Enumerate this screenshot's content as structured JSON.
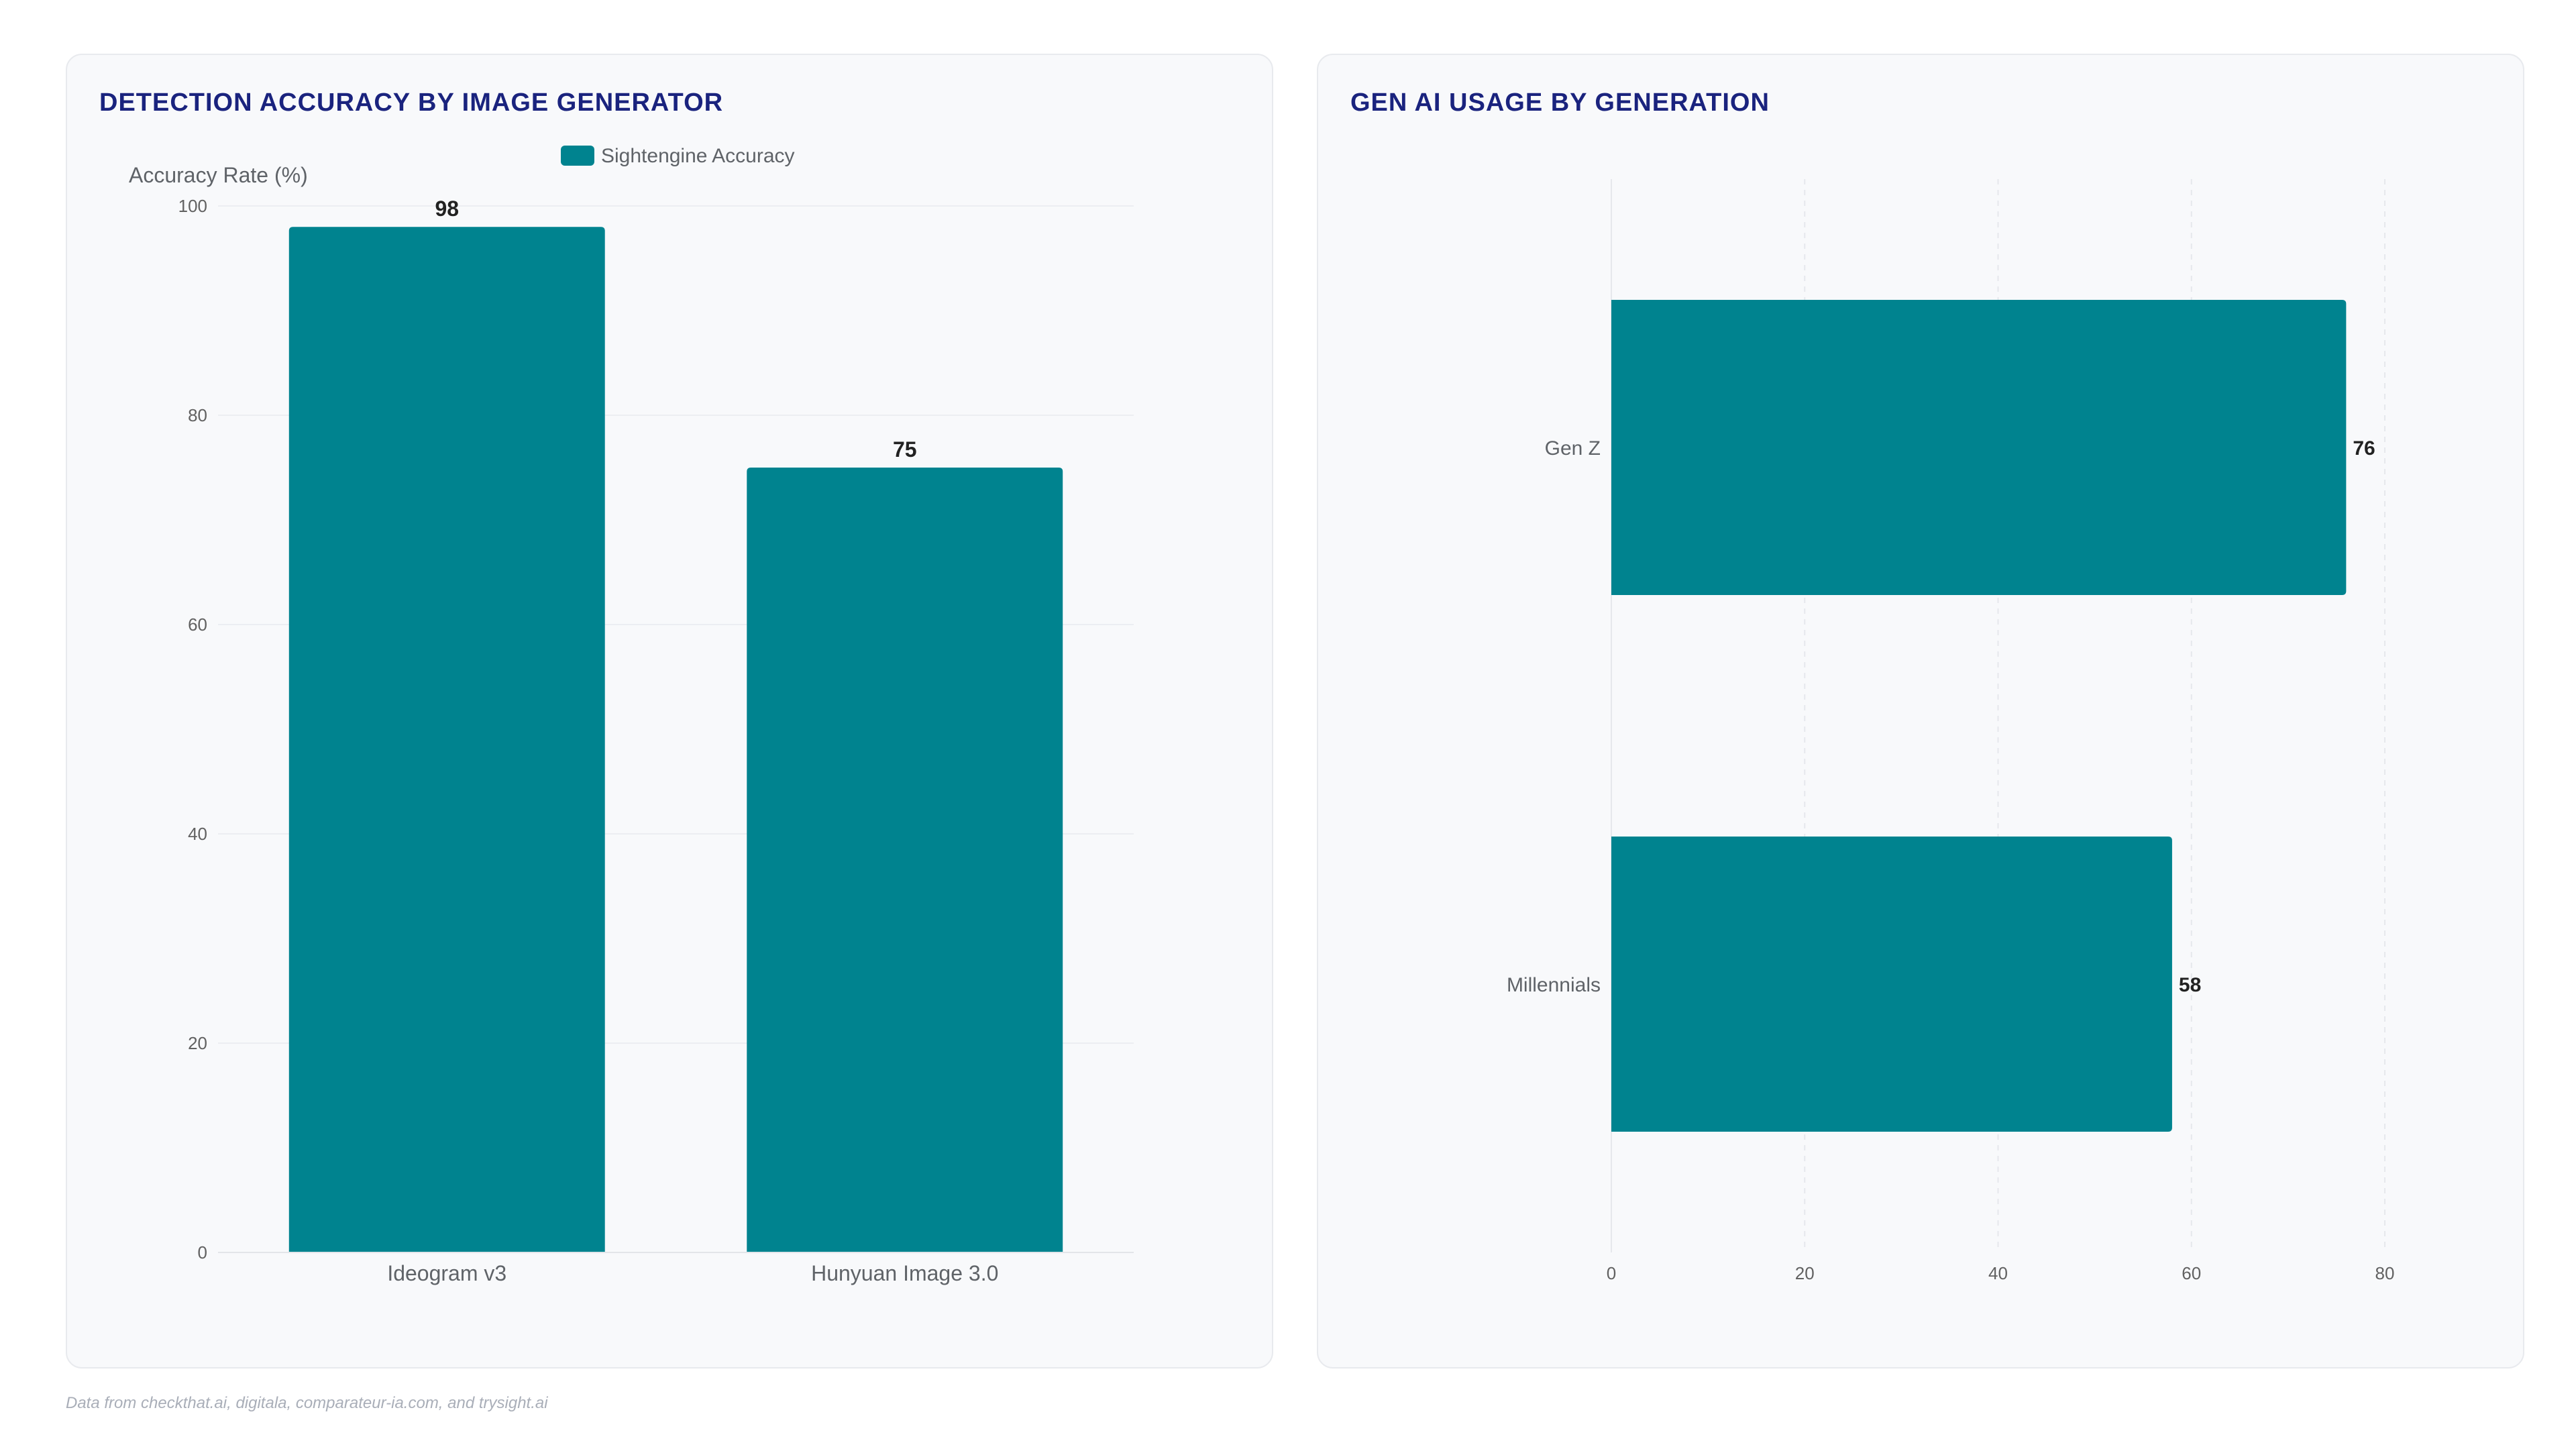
{
  "chart_data": [
    {
      "type": "bar",
      "title": "DETECTION ACCURACY BY IMAGE GENERATOR",
      "categories": [
        "Ideogram v3",
        "Hunyuan Image 3.0"
      ],
      "series": [
        {
          "name": "Sightengine Accuracy",
          "values": [
            98,
            75
          ]
        }
      ],
      "ylabel": "Accuracy Rate (%)",
      "xlabel": "",
      "ylim": [
        0,
        100
      ],
      "yticks": [
        0,
        20,
        40,
        60,
        80,
        100
      ],
      "grid": true,
      "legend": "top-center",
      "color": "#00838f"
    },
    {
      "type": "bar",
      "orientation": "horizontal",
      "title": "GEN AI USAGE BY GENERATION",
      "categories": [
        "Gen Z",
        "Millennials"
      ],
      "series": [
        {
          "values": [
            76,
            58
          ]
        }
      ],
      "xlabel": "",
      "ylabel": "",
      "xlim": [
        0,
        80
      ],
      "xticks": [
        0,
        20,
        40,
        60,
        80
      ],
      "grid": true,
      "legend": "none",
      "color": "#00838f"
    }
  ],
  "footnote": "Data from checkthat.ai, digitala, comparateur-ia.com, and trysight.ai"
}
